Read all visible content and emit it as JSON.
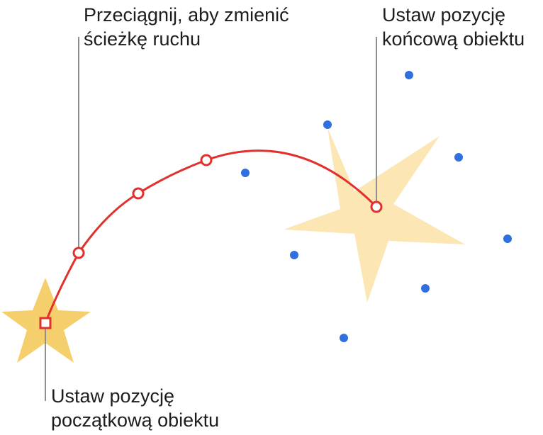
{
  "callouts": {
    "drag_path": [
      "Przeciągnij, aby zmienić",
      "ścieżkę ruchu"
    ],
    "end_position": [
      "Ustaw pozycję",
      "końcową obiektu"
    ],
    "start_position": [
      "Ustaw pozycję",
      "początkową obiektu"
    ]
  },
  "colors": {
    "path": "#e0312e",
    "start_star": "#f5cf6b",
    "end_star": "#fbe6b4",
    "handle_dot": "#2f6fde",
    "leader_line": "#8e8e93"
  },
  "icons": {
    "start_handle": "square-handle-icon",
    "path_point": "circle-handle-icon",
    "selection_handle": "blue-dot-handle-icon"
  }
}
